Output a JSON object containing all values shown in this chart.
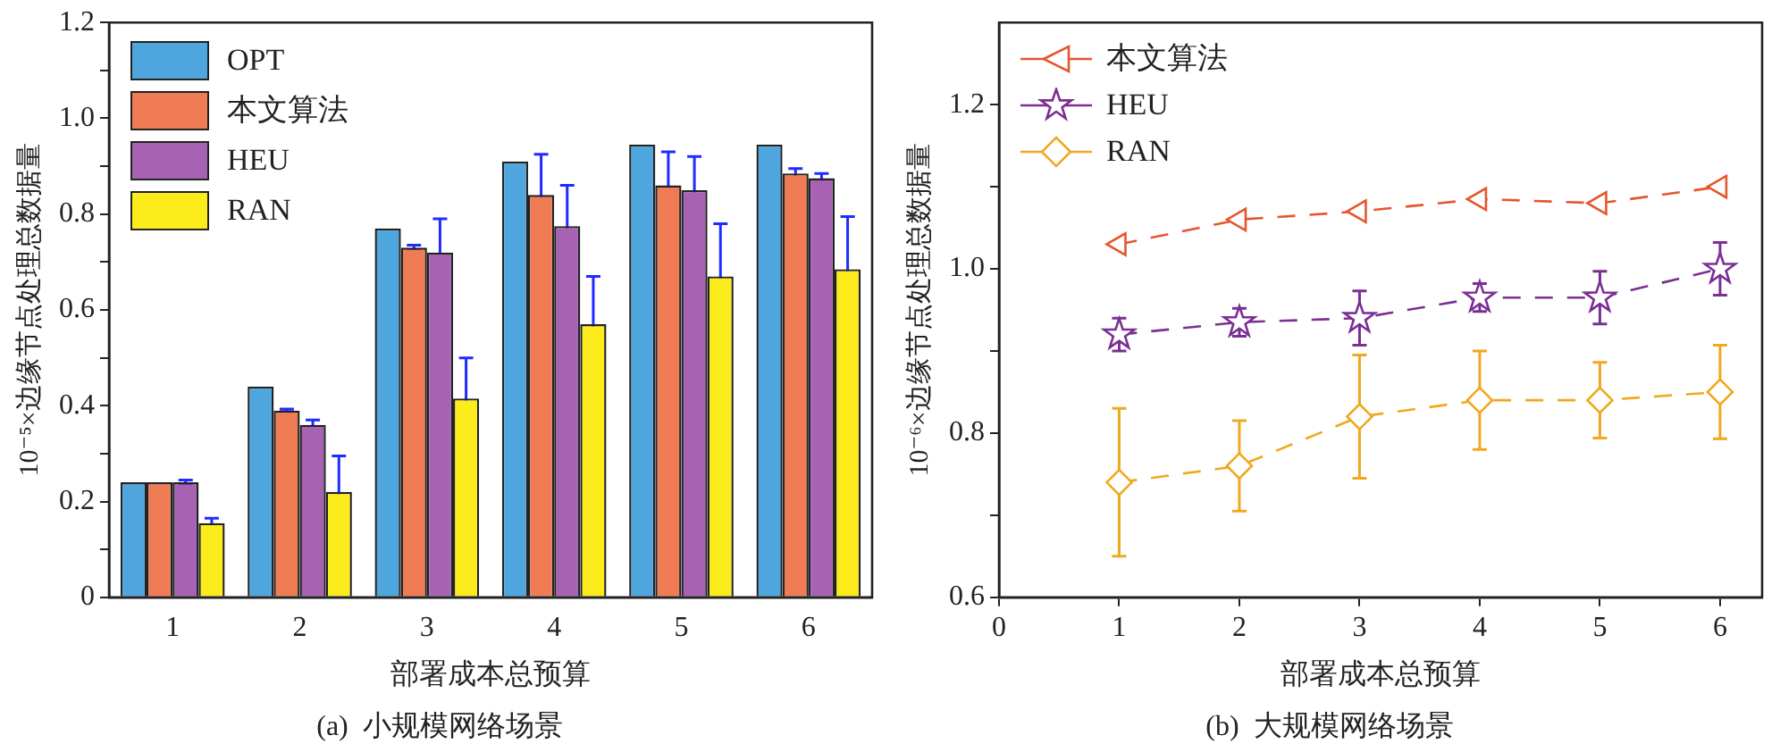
{
  "chart_data": [
    {
      "type": "bar",
      "title": "(a)  小规模网络场景",
      "xlabel": "部署成本总预算",
      "ylabel": "10⁻⁵×边缘节点处理总数据量",
      "categories": [
        "1",
        "2",
        "3",
        "4",
        "5",
        "6"
      ],
      "ylim": [
        0,
        1.2
      ],
      "yticks": [
        0,
        {
          "value": 0.1,
          "label": null
        },
        0.2,
        {
          "value": 0.3,
          "label": null
        },
        0.4,
        {
          "value": 0.5,
          "label": null
        },
        0.6,
        {
          "value": 0.7,
          "label": null
        },
        0.8,
        {
          "value": 0.9,
          "label": null
        },
        {
          "value": 1.0,
          "label": "1.0"
        },
        {
          "value": 1.1,
          "label": null
        },
        1.2
      ],
      "legend": "top left",
      "grid": false,
      "series": [
        {
          "name": "OPT",
          "color": "#4fa6de",
          "values": [
            0.24,
            0.44,
            0.77,
            0.91,
            0.945,
            0.945
          ]
        },
        {
          "name": "本文算法",
          "color": "#f07c55",
          "values": [
            0.24,
            0.39,
            0.73,
            0.84,
            0.86,
            0.885
          ],
          "errors": [
            null,
            0.003,
            0.005,
            0.085,
            0.07,
            0.01
          ]
        },
        {
          "name": "HEU",
          "color": "#a862b4",
          "values": [
            0.24,
            0.36,
            0.72,
            0.775,
            0.85,
            0.875
          ],
          "errors": [
            0.005,
            0.01,
            0.07,
            0.085,
            0.07,
            0.01
          ]
        },
        {
          "name": "RAN",
          "color": "#fcec1c",
          "values": [
            0.155,
            0.22,
            0.415,
            0.57,
            0.67,
            0.685
          ],
          "errors": [
            0.01,
            0.075,
            0.085,
            0.1,
            0.11,
            0.11
          ]
        }
      ]
    },
    {
      "type": "line",
      "title": "(b)  大规模网络场景",
      "xlabel": "部署成本总预算",
      "ylabel": "10⁻⁶×边缘节点处理总数据量",
      "x": [
        1,
        2,
        3,
        4,
        5,
        6
      ],
      "xlim": [
        0,
        6.35
      ],
      "xticks": [
        0,
        1,
        2,
        3,
        4,
        5,
        6
      ],
      "ylim": [
        0.6,
        1.3
      ],
      "yticks": [
        0.6,
        {
          "value": 0.7,
          "label": null
        },
        0.8,
        {
          "value": 0.9,
          "label": null
        },
        {
          "value": 1.0,
          "label": "1.0"
        },
        {
          "value": 1.1,
          "label": null
        },
        1.2
      ],
      "legend": "top left",
      "grid": false,
      "line_style": "dashed",
      "series": [
        {
          "name": "本文算法",
          "color": "#e4572e",
          "marker": "triangle",
          "values": [
            1.03,
            1.06,
            1.07,
            1.085,
            1.08,
            1.1
          ]
        },
        {
          "name": "HEU",
          "color": "#7b2f93",
          "marker": "star",
          "values": [
            0.92,
            0.935,
            0.94,
            0.965,
            0.965,
            1.0
          ],
          "errors": [
            0.02,
            0.017,
            0.033,
            0.017,
            0.032,
            0.032
          ]
        },
        {
          "name": "RAN",
          "color": "#f0a81e",
          "marker": "diamond",
          "values": [
            0.74,
            0.76,
            0.82,
            0.84,
            0.84,
            0.85
          ],
          "errors": [
            0.09,
            0.055,
            0.075,
            0.06,
            0.046,
            0.057
          ]
        }
      ]
    }
  ]
}
